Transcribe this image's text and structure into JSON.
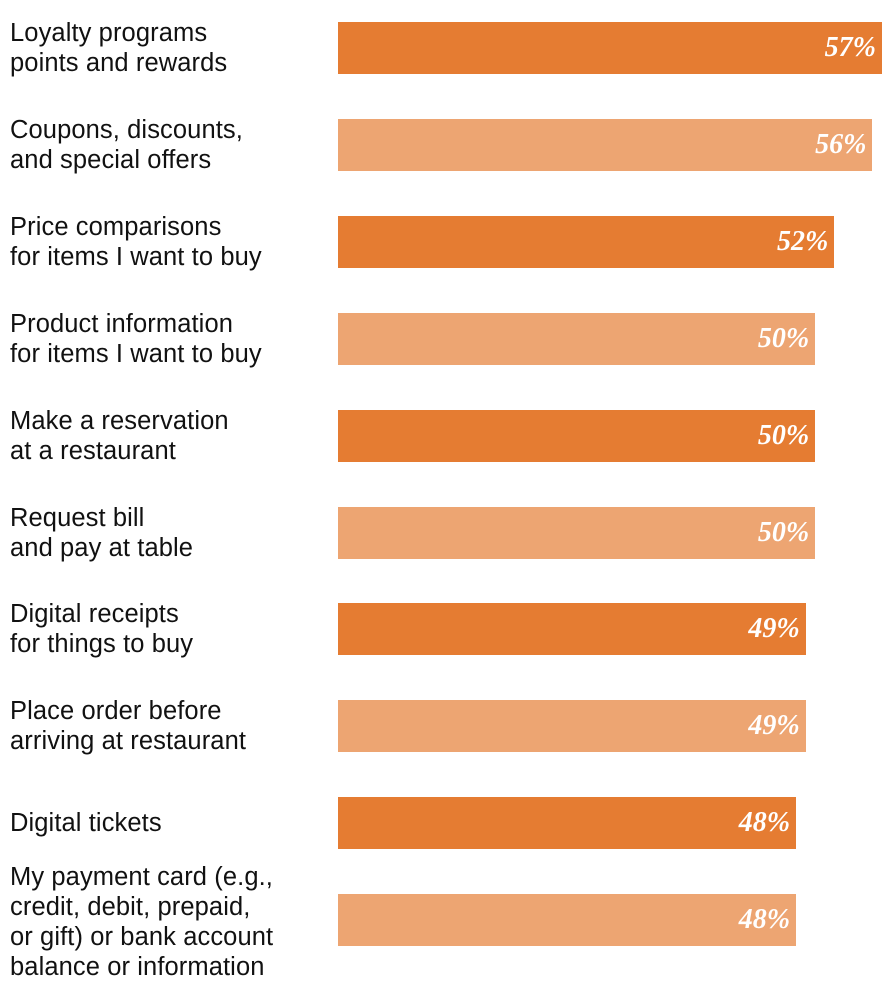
{
  "chart_data": {
    "type": "bar",
    "orientation": "horizontal",
    "title": "",
    "xlabel": "",
    "ylabel": "",
    "xlim": [
      0,
      57
    ],
    "categories": [
      "Loyalty programs\npoints and rewards",
      "Coupons, discounts,\nand special offers",
      "Price comparisons\nfor items I want to buy",
      "Product information\nfor items I want to buy",
      "Make a reservation\nat a restaurant",
      "Request bill\nand pay at table",
      "Digital receipts\nfor things to buy",
      "Place order before\narriving at restaurant",
      "Digital tickets",
      "My payment card (e.g.,\ncredit, debit, prepaid,\nor gift) or bank account\nbalance or information"
    ],
    "values": [
      57,
      56,
      52,
      50,
      50,
      50,
      49,
      49,
      48,
      48
    ],
    "value_labels": [
      "57%",
      "56%",
      "52%",
      "50%",
      "50%",
      "50%",
      "49%",
      "49%",
      "48%",
      "48%"
    ],
    "grid": false,
    "legend": "none",
    "colors": {
      "dark_bar": "#E57C32",
      "light_bar": "#EDA572",
      "label_text": "#111111",
      "value_text": "#FFFFFF"
    }
  }
}
